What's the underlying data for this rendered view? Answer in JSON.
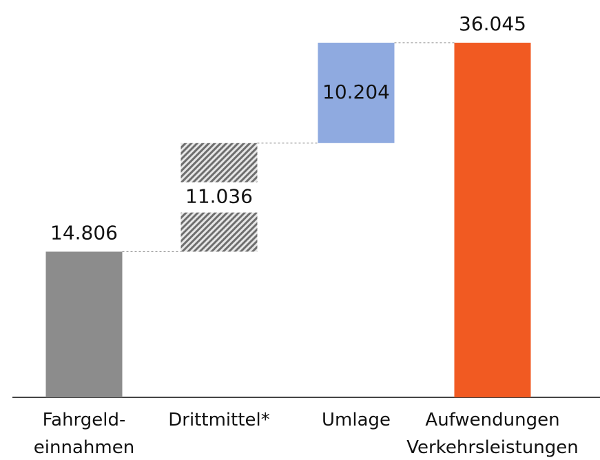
{
  "chart_data": {
    "type": "waterfall",
    "categories": [
      "Fahrgeld-\neinnahmen",
      "Drittmittel*",
      "Umlage",
      "Aufwendungen\nVerkehrsleistungen"
    ],
    "values": [
      14806,
      11036,
      10204,
      36045
    ],
    "value_labels": [
      "14.806",
      "11.036",
      "10.204",
      "36.045"
    ],
    "measures": [
      "absolute",
      "relative",
      "relative",
      "total"
    ],
    "colors": [
      "#8c8c8c",
      "#8c8c8c",
      "#8faae0",
      "#f15a22"
    ],
    "patterns": [
      "solid",
      "hatch",
      "solid",
      "solid"
    ]
  }
}
